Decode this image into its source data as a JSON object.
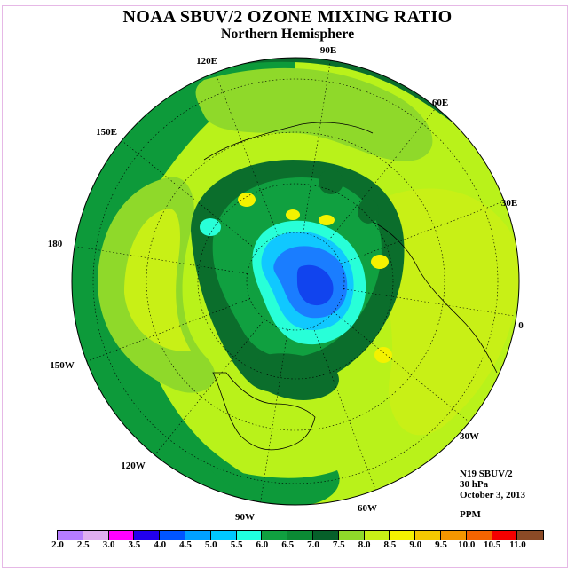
{
  "header": {
    "title": "NOAA SBUV/2 OZONE MIXING RATIO",
    "subtitle": "Northern Hemisphere"
  },
  "map": {
    "projection": "polar stereographic, north pole centered",
    "longitude_labels": [
      "90E",
      "60E",
      "30E",
      "0",
      "30W",
      "60W",
      "90W",
      "120W",
      "150W",
      "180",
      "150E",
      "120E"
    ],
    "field_colors": {
      "ring_outer": "#0d9a3a",
      "band_6_5_7": "#0b6e2c",
      "band_7_7_5": "#8fd92a",
      "band_7_5_8": "#b9f21a",
      "band_8_8_5": "#f4f200",
      "band_5_5_6": "#28ffd8",
      "band_5_5_5": "#10c8ff",
      "band_4_5_5": "#1a7dff",
      "band_4_4_5": "#1144ee"
    }
  },
  "info": {
    "instrument": "N19 SBUV/2",
    "level": "30 hPa",
    "date": "October 3, 2013",
    "units": "PPM"
  },
  "colorbar": {
    "colors": [
      "#b57cff",
      "#e0aef0",
      "#ff00ff",
      "#2200ee",
      "#0055ff",
      "#00a0ff",
      "#00c8ff",
      "#20ffe0",
      "#10a040",
      "#0b8a34",
      "#06602a",
      "#8fd92a",
      "#c8f016",
      "#f4f200",
      "#f4c800",
      "#f49600",
      "#f46400",
      "#f40000",
      "#8b4a26"
    ],
    "labels": [
      "2.0",
      "2.5",
      "3.0",
      "3.5",
      "4.0",
      "4.5",
      "5.0",
      "5.5",
      "6.0",
      "6.5",
      "7.0",
      "7.5",
      "8.0",
      "8.5",
      "9.0",
      "9.5",
      "10.0",
      "10.5",
      "11.0"
    ]
  }
}
